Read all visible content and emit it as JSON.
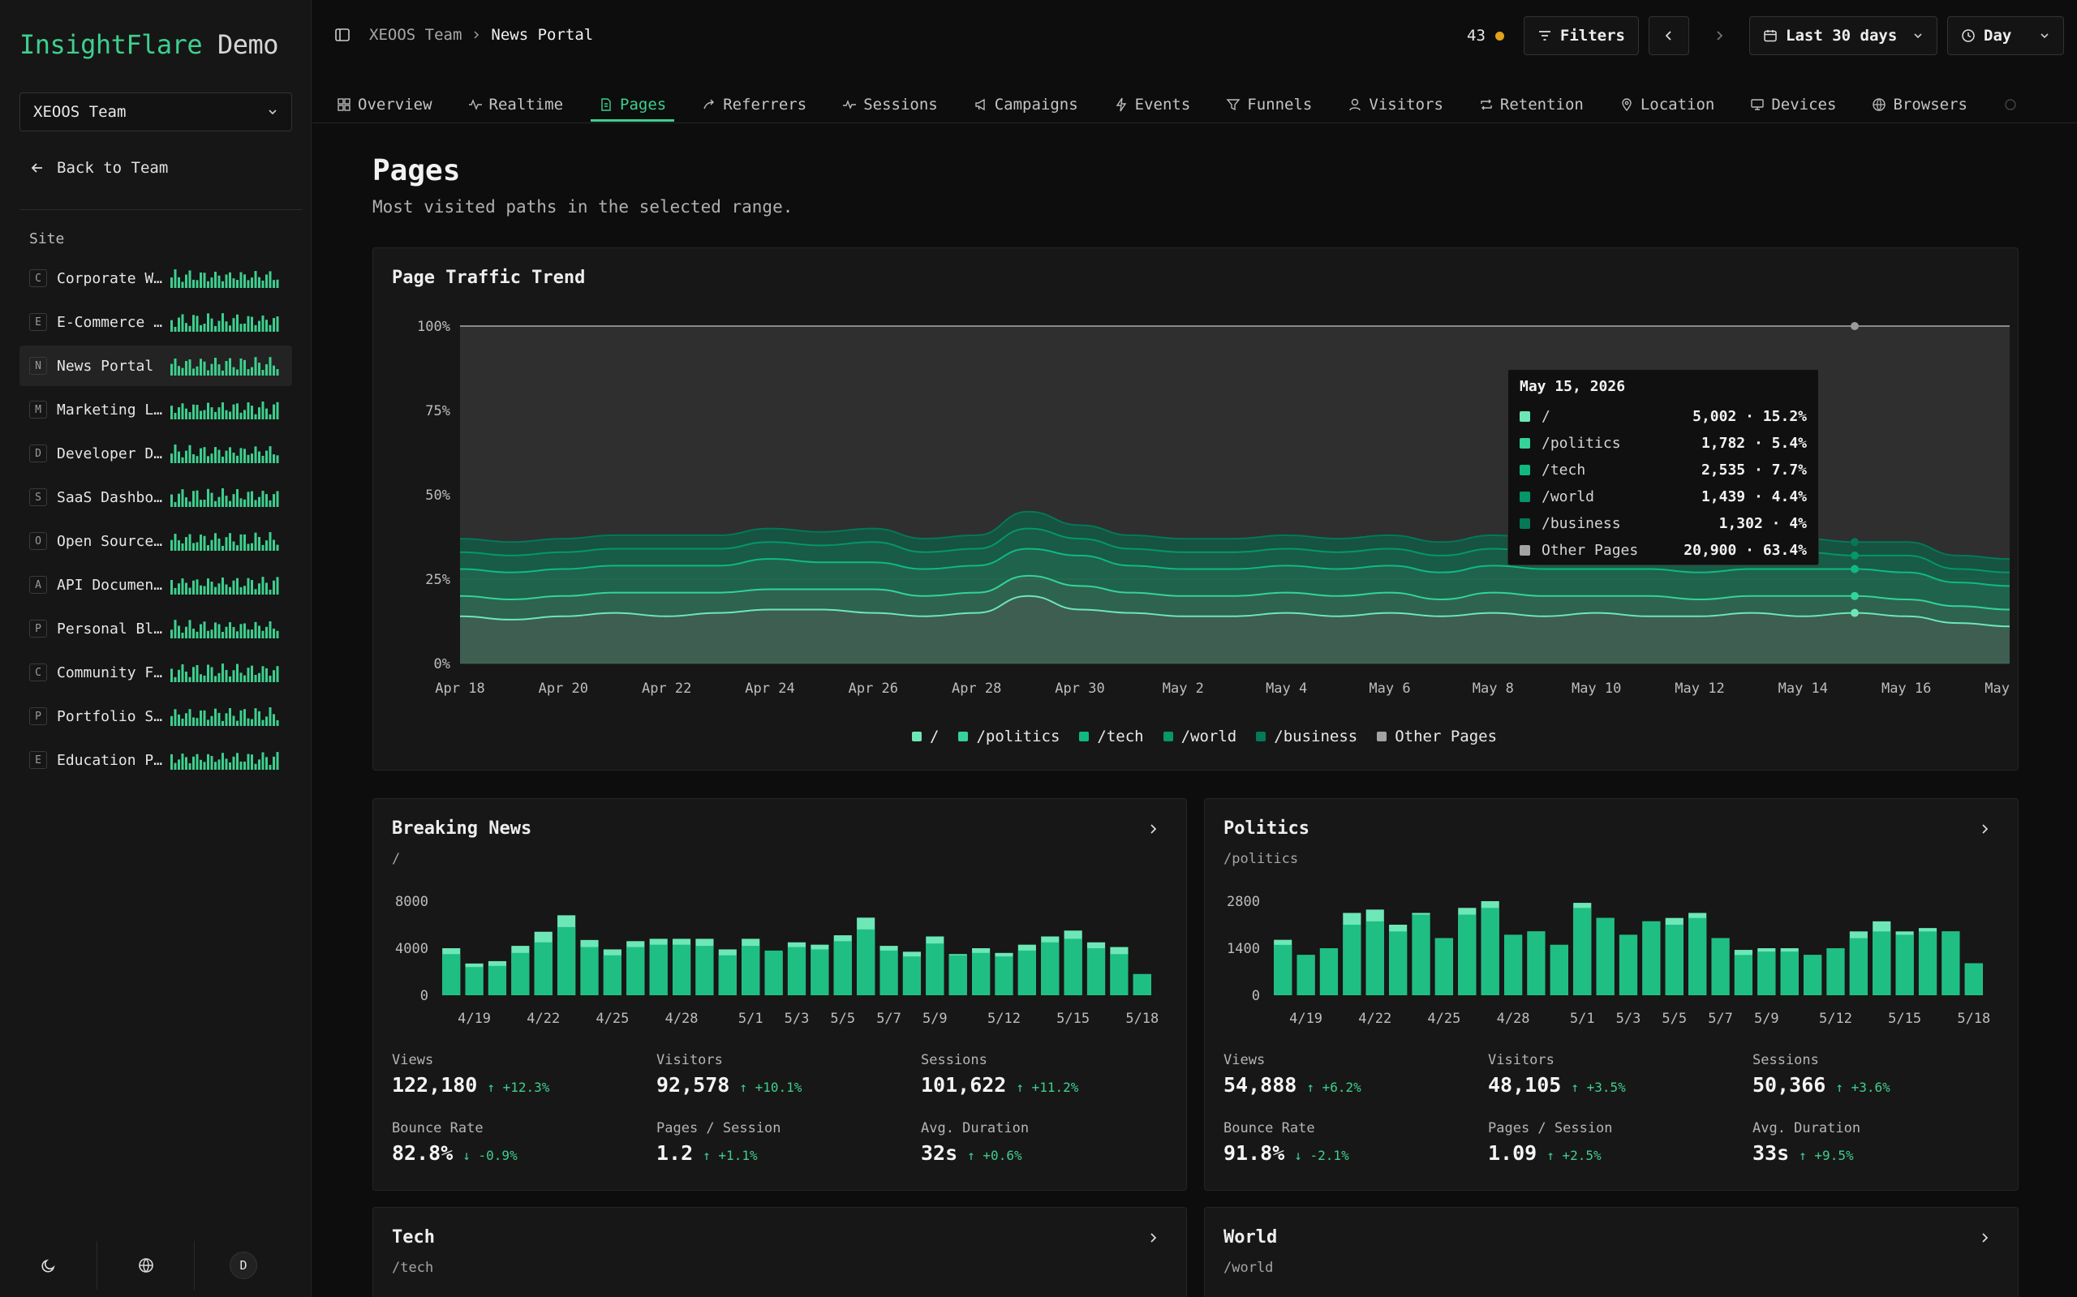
{
  "brand": {
    "part1": "InsightFlare",
    "part2": "Demo"
  },
  "team_select": {
    "value": "XEOOS Team"
  },
  "back_link": "Back to Team",
  "site_label": "Site",
  "sites": [
    {
      "letter": "C",
      "name": "Corporate W…",
      "active": false
    },
    {
      "letter": "E",
      "name": "E-Commerce …",
      "active": false
    },
    {
      "letter": "N",
      "name": "News Portal",
      "active": true
    },
    {
      "letter": "M",
      "name": "Marketing L…",
      "active": false
    },
    {
      "letter": "D",
      "name": "Developer D…",
      "active": false
    },
    {
      "letter": "S",
      "name": "SaaS Dashbo…",
      "active": false
    },
    {
      "letter": "O",
      "name": "Open Source…",
      "active": false
    },
    {
      "letter": "A",
      "name": "API Documen…",
      "active": false
    },
    {
      "letter": "P",
      "name": "Personal Bl…",
      "active": false
    },
    {
      "letter": "C",
      "name": "Community F…",
      "active": false
    },
    {
      "letter": "P",
      "name": "Portfolio S…",
      "active": false
    },
    {
      "letter": "E",
      "name": "Education P…",
      "active": false
    }
  ],
  "footer": {
    "avatar": "D"
  },
  "breadcrumb": {
    "team": "XEOOS Team",
    "site": "News Portal"
  },
  "topbar": {
    "live_count": "43",
    "filters": "Filters",
    "range": "Last 30 days",
    "interval": "Day"
  },
  "tabs": [
    {
      "label": "Overview",
      "icon": "grid-icon"
    },
    {
      "label": "Realtime",
      "icon": "activity-icon"
    },
    {
      "label": "Pages",
      "icon": "file-icon",
      "active": true
    },
    {
      "label": "Referrers",
      "icon": "share-icon"
    },
    {
      "label": "Sessions",
      "icon": "pulse-icon"
    },
    {
      "label": "Campaigns",
      "icon": "megaphone-icon"
    },
    {
      "label": "Events",
      "icon": "bolt-icon"
    },
    {
      "label": "Funnels",
      "icon": "funnel-icon"
    },
    {
      "label": "Visitors",
      "icon": "user-icon"
    },
    {
      "label": "Retention",
      "icon": "repeat-icon"
    },
    {
      "label": "Location",
      "icon": "pin-icon"
    },
    {
      "label": "Devices",
      "icon": "monitor-icon"
    },
    {
      "label": "Browsers",
      "icon": "globe-icon"
    }
  ],
  "page": {
    "title": "Pages",
    "subtitle": "Most visited paths in the selected range."
  },
  "colors": {
    "accent": "#3ecf8e",
    "bg": "#0d0d0d",
    "card": "#171717",
    "live": "#e0a21a"
  },
  "chart_data": [
    {
      "type": "area",
      "title": "Page Traffic Trend",
      "stacked": "percent",
      "x": [
        "Apr 18",
        "Apr 19",
        "Apr 20",
        "Apr 21",
        "Apr 22",
        "Apr 23",
        "Apr 24",
        "Apr 25",
        "Apr 26",
        "Apr 27",
        "Apr 28",
        "Apr 29",
        "Apr 30",
        "May 1",
        "May 2",
        "May 3",
        "May 4",
        "May 5",
        "May 6",
        "May 7",
        "May 8",
        "May 9",
        "May 10",
        "May 11",
        "May 12",
        "May 13",
        "May 14",
        "May 15",
        "May 16",
        "May 17",
        "May 18"
      ],
      "x_ticks": [
        "Apr 18",
        "Apr 20",
        "Apr 22",
        "Apr 24",
        "Apr 26",
        "Apr 28",
        "Apr 30",
        "May 2",
        "May 4",
        "May 6",
        "May 8",
        "May 10",
        "May 12",
        "May 14",
        "May 16",
        "May 18"
      ],
      "y_ticks": [
        "0%",
        "25%",
        "50%",
        "75%",
        "100%"
      ],
      "ylim": [
        0,
        100
      ],
      "series": [
        {
          "name": "/",
          "color": "#6ee7b7",
          "values": [
            14,
            13,
            14,
            15,
            14,
            15,
            16,
            16,
            15,
            14,
            15,
            20,
            16,
            15,
            14,
            14,
            15,
            14,
            15,
            14,
            15,
            14,
            15,
            14,
            14,
            15,
            14,
            15,
            14,
            12,
            11
          ]
        },
        {
          "name": "/politics",
          "color": "#34d399",
          "values": [
            6,
            6,
            6,
            6,
            7,
            6,
            6,
            6,
            7,
            6,
            6,
            6,
            7,
            6,
            6,
            6,
            6,
            6,
            6,
            5,
            6,
            6,
            5,
            6,
            5,
            5,
            6,
            5,
            5,
            5,
            5
          ]
        },
        {
          "name": "/tech",
          "color": "#10b981",
          "values": [
            8,
            8,
            8,
            8,
            8,
            8,
            9,
            8,
            8,
            8,
            8,
            8,
            9,
            8,
            8,
            8,
            8,
            8,
            8,
            8,
            8,
            8,
            8,
            8,
            8,
            8,
            8,
            8,
            8,
            7,
            7
          ]
        },
        {
          "name": "/world",
          "color": "#059669",
          "values": [
            5,
            5,
            5,
            5,
            5,
            5,
            5,
            5,
            6,
            5,
            5,
            6,
            5,
            5,
            5,
            5,
            5,
            5,
            5,
            5,
            5,
            5,
            5,
            5,
            5,
            5,
            5,
            4,
            5,
            4,
            4
          ]
        },
        {
          "name": "/business",
          "color": "#047857",
          "values": [
            4,
            4,
            4,
            4,
            4,
            4,
            4,
            4,
            4,
            4,
            4,
            5,
            4,
            4,
            4,
            4,
            4,
            4,
            4,
            4,
            4,
            4,
            4,
            4,
            4,
            4,
            4,
            4,
            4,
            4,
            4
          ]
        },
        {
          "name": "Other Pages",
          "color": "#a3a3a3",
          "values": [
            63,
            64,
            63,
            62,
            62,
            62,
            60,
            61,
            60,
            63,
            62,
            55,
            59,
            62,
            63,
            63,
            62,
            63,
            62,
            64,
            62,
            63,
            63,
            63,
            64,
            63,
            63,
            64,
            64,
            68,
            69
          ]
        }
      ],
      "tooltip": {
        "date": "May 15, 2026",
        "rows": [
          {
            "path": "/",
            "value": "5,002 · 15.2%"
          },
          {
            "path": "/politics",
            "value": "1,782 · 5.4%"
          },
          {
            "path": "/tech",
            "value": "2,535 · 7.7%"
          },
          {
            "path": "/world",
            "value": "1,439 · 4.4%"
          },
          {
            "path": "/business",
            "value": "1,302 · 4%"
          },
          {
            "path": "Other Pages",
            "value": "20,900 · 63.4%"
          }
        ]
      }
    },
    {
      "type": "bar",
      "title": "Breaking News",
      "path": "/",
      "x_ticks": [
        "4/19",
        "4/22",
        "4/25",
        "4/28",
        "5/1",
        "5/3",
        "5/5",
        "5/7",
        "5/9",
        "5/12",
        "5/15",
        "5/18"
      ],
      "y_ticks": [
        "0",
        "4000",
        "8000"
      ],
      "ylim": [
        0,
        8000
      ],
      "series": [
        {
          "name": "visitors",
          "values": [
            3500,
            2400,
            2500,
            3600,
            4500,
            5800,
            4100,
            3400,
            4100,
            4300,
            4300,
            4200,
            3400,
            4200,
            3800,
            4100,
            3900,
            4600,
            5600,
            3800,
            3300,
            4400,
            3400,
            3600,
            3300,
            3800,
            4500,
            4800,
            4000,
            3500,
            1800
          ]
        },
        {
          "name": "views",
          "values": [
            4000,
            2700,
            2900,
            4200,
            5400,
            6800,
            4700,
            3900,
            4600,
            4800,
            4800,
            4800,
            3900,
            4800,
            3700,
            4500,
            4300,
            5100,
            6600,
            4200,
            3700,
            5000,
            3500,
            4000,
            3600,
            4300,
            5000,
            5500,
            4500,
            4100,
            1800
          ]
        }
      ]
    },
    {
      "type": "bar",
      "title": "Politics",
      "path": "/politics",
      "x_ticks": [
        "4/19",
        "4/22",
        "4/25",
        "4/28",
        "5/1",
        "5/3",
        "5/5",
        "5/7",
        "5/9",
        "5/12",
        "5/15",
        "5/18"
      ],
      "y_ticks": [
        "0",
        "1400",
        "2800"
      ],
      "ylim": [
        0,
        2800
      ],
      "series": [
        {
          "name": "visitors",
          "values": [
            1500,
            1200,
            1400,
            2100,
            2200,
            1900,
            2400,
            1700,
            2400,
            2600,
            1800,
            1900,
            1500,
            2600,
            2300,
            1800,
            2200,
            2100,
            2300,
            1700,
            1200,
            1300,
            1300,
            1200,
            1400,
            1700,
            1900,
            1800,
            1900,
            1900,
            950
          ]
        },
        {
          "name": "views",
          "values": [
            1650,
            1200,
            1400,
            2450,
            2550,
            2100,
            2450,
            1700,
            2600,
            2800,
            1800,
            1900,
            1500,
            2750,
            2300,
            1800,
            2200,
            2300,
            2450,
            1700,
            1350,
            1400,
            1400,
            1200,
            1400,
            1900,
            2200,
            1900,
            2000,
            1900,
            950
          ]
        }
      ]
    }
  ],
  "cards": [
    {
      "title": "Breaking News",
      "path": "/",
      "stats": [
        {
          "label": "Views",
          "value": "122,180",
          "delta": "+12.3%",
          "dir": "up"
        },
        {
          "label": "Visitors",
          "value": "92,578",
          "delta": "+10.1%",
          "dir": "up"
        },
        {
          "label": "Sessions",
          "value": "101,622",
          "delta": "+11.2%",
          "dir": "up"
        },
        {
          "label": "Bounce Rate",
          "value": "82.8%",
          "delta": "-0.9%",
          "dir": "down"
        },
        {
          "label": "Pages / Session",
          "value": "1.2",
          "delta": "+1.1%",
          "dir": "up"
        },
        {
          "label": "Avg. Duration",
          "value": "32s",
          "delta": "+0.6%",
          "dir": "up"
        }
      ]
    },
    {
      "title": "Politics",
      "path": "/politics",
      "stats": [
        {
          "label": "Views",
          "value": "54,888",
          "delta": "+6.2%",
          "dir": "up"
        },
        {
          "label": "Visitors",
          "value": "48,105",
          "delta": "+3.5%",
          "dir": "up"
        },
        {
          "label": "Sessions",
          "value": "50,366",
          "delta": "+3.6%",
          "dir": "up"
        },
        {
          "label": "Bounce Rate",
          "value": "91.8%",
          "delta": "-2.1%",
          "dir": "down"
        },
        {
          "label": "Pages / Session",
          "value": "1.09",
          "delta": "+2.5%",
          "dir": "up"
        },
        {
          "label": "Avg. Duration",
          "value": "33s",
          "delta": "+9.5%",
          "dir": "up"
        }
      ]
    },
    {
      "title": "Tech",
      "path": "/tech"
    },
    {
      "title": "World",
      "path": "/world"
    }
  ]
}
